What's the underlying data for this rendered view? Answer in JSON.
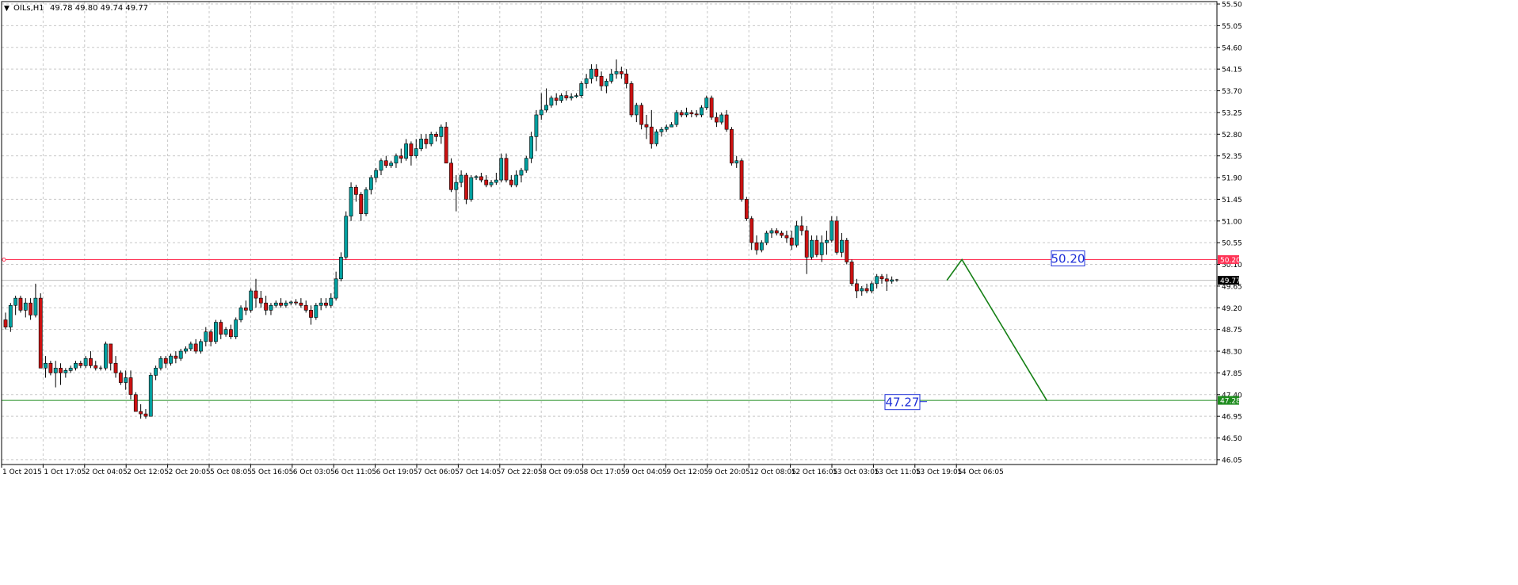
{
  "header": {
    "arrow": "▼",
    "symbol": "OILs,H1",
    "ohlc": "49.78 49.80 49.74 49.77"
  },
  "colors": {
    "bull_body": "#00A0A0",
    "bear_body": "#CC1111",
    "wick": "#000000",
    "grid": "#C8C8C8",
    "resistance_line": "#FF3355",
    "support_line": "#1E8C1E",
    "projection_line": "#168016",
    "current_price_bg": "#000000",
    "annotation_text": "#1E2FD8"
  },
  "chart_data": {
    "type": "candlestick",
    "symbol": "OILs",
    "timeframe": "H1",
    "ylim": [
      45.95,
      55.55
    ],
    "y_ticks": [
      "55.50",
      "55.05",
      "54.60",
      "54.15",
      "53.70",
      "53.25",
      "52.80",
      "52.35",
      "51.90",
      "51.45",
      "51.00",
      "50.55",
      "50.10",
      "49.65",
      "49.20",
      "48.75",
      "48.30",
      "47.85",
      "47.40",
      "46.95",
      "46.50",
      "46.05"
    ],
    "x_tick_labels": [
      "1 Oct 2015",
      "1 Oct 17:05",
      "2 Oct 04:05",
      "2 Oct 12:05",
      "2 Oct 20:05",
      "5 Oct 08:05",
      "5 Oct 16:05",
      "6 Oct 03:05",
      "6 Oct 11:05",
      "6 Oct 19:05",
      "7 Oct 06:05",
      "7 Oct 14:05",
      "7 Oct 22:05",
      "8 Oct 09:05",
      "8 Oct 17:05",
      "9 Oct 04:05",
      "9 Oct 12:05",
      "9 Oct 20:05",
      "12 Oct 08:05",
      "12 Oct 16:05",
      "13 Oct 03:05",
      "13 Oct 11:05",
      "13 Oct 19:05",
      "14 Oct 06:05"
    ],
    "bars": [
      [
        48.95,
        49.1,
        48.75,
        48.8
      ],
      [
        48.8,
        49.3,
        48.7,
        49.25
      ],
      [
        49.25,
        49.45,
        49.05,
        49.4
      ],
      [
        49.4,
        49.45,
        49.1,
        49.15
      ],
      [
        49.15,
        49.4,
        49.0,
        49.3
      ],
      [
        49.3,
        49.4,
        48.95,
        49.05
      ],
      [
        49.05,
        49.7,
        49.0,
        49.4
      ],
      [
        49.4,
        49.5,
        48.1,
        47.95
      ],
      [
        47.95,
        48.2,
        47.75,
        48.05
      ],
      [
        48.05,
        48.1,
        47.8,
        47.85
      ],
      [
        47.85,
        48.1,
        47.55,
        47.95
      ],
      [
        47.95,
        48.05,
        47.6,
        47.85
      ],
      [
        47.85,
        47.95,
        47.75,
        47.9
      ],
      [
        47.9,
        48.0,
        47.85,
        47.95
      ],
      [
        47.95,
        48.1,
        47.9,
        48.05
      ],
      [
        48.05,
        48.1,
        47.95,
        48.0
      ],
      [
        48.0,
        48.2,
        47.95,
        48.15
      ],
      [
        48.15,
        48.3,
        47.95,
        48.0
      ],
      [
        48.0,
        48.1,
        47.9,
        47.95
      ],
      [
        47.95,
        48.0,
        47.9,
        47.95
      ],
      [
        47.95,
        48.5,
        47.9,
        48.45
      ],
      [
        48.45,
        48.45,
        47.9,
        48.05
      ],
      [
        48.05,
        48.2,
        47.75,
        47.85
      ],
      [
        47.85,
        47.9,
        47.6,
        47.65
      ],
      [
        47.65,
        47.9,
        47.5,
        47.75
      ],
      [
        47.75,
        47.9,
        47.3,
        47.4
      ],
      [
        47.4,
        47.45,
        47.1,
        47.05
      ],
      [
        47.05,
        47.2,
        46.9,
        47.0
      ],
      [
        47.0,
        47.1,
        46.9,
        46.95
      ],
      [
        46.95,
        47.85,
        46.95,
        47.8
      ],
      [
        47.8,
        48.0,
        47.7,
        47.95
      ],
      [
        47.95,
        48.2,
        47.9,
        48.15
      ],
      [
        48.15,
        48.2,
        47.95,
        48.05
      ],
      [
        48.05,
        48.25,
        48.0,
        48.2
      ],
      [
        48.2,
        48.3,
        48.05,
        48.15
      ],
      [
        48.15,
        48.35,
        48.1,
        48.3
      ],
      [
        48.3,
        48.4,
        48.25,
        48.35
      ],
      [
        48.35,
        48.5,
        48.3,
        48.45
      ],
      [
        48.45,
        48.55,
        48.25,
        48.3
      ],
      [
        48.3,
        48.55,
        48.25,
        48.5
      ],
      [
        48.5,
        48.8,
        48.4,
        48.7
      ],
      [
        48.7,
        48.75,
        48.4,
        48.5
      ],
      [
        48.5,
        48.95,
        48.45,
        48.9
      ],
      [
        48.9,
        48.95,
        48.55,
        48.65
      ],
      [
        48.65,
        48.8,
        48.6,
        48.75
      ],
      [
        48.75,
        48.85,
        48.55,
        48.6
      ],
      [
        48.6,
        49.0,
        48.55,
        48.95
      ],
      [
        48.95,
        49.25,
        48.9,
        49.2
      ],
      [
        49.2,
        49.35,
        49.05,
        49.15
      ],
      [
        49.15,
        49.6,
        49.1,
        49.55
      ],
      [
        49.55,
        49.8,
        49.2,
        49.4
      ],
      [
        49.4,
        49.55,
        49.2,
        49.3
      ],
      [
        49.3,
        49.45,
        49.05,
        49.15
      ],
      [
        49.15,
        49.3,
        49.05,
        49.25
      ],
      [
        49.25,
        49.35,
        49.2,
        49.3
      ],
      [
        49.3,
        49.4,
        49.2,
        49.25
      ],
      [
        49.25,
        49.35,
        49.2,
        49.3
      ],
      [
        49.3,
        49.35,
        49.25,
        49.32
      ],
      [
        49.32,
        49.38,
        49.25,
        49.3
      ],
      [
        49.3,
        49.4,
        49.2,
        49.25
      ],
      [
        49.25,
        49.35,
        49.1,
        49.15
      ],
      [
        49.15,
        49.25,
        48.85,
        49.0
      ],
      [
        49.0,
        49.3,
        48.95,
        49.25
      ],
      [
        49.25,
        49.4,
        49.15,
        49.3
      ],
      [
        49.3,
        49.4,
        49.2,
        49.25
      ],
      [
        49.25,
        49.5,
        49.2,
        49.4
      ],
      [
        49.4,
        49.95,
        49.35,
        49.8
      ],
      [
        49.8,
        50.35,
        49.75,
        50.25
      ],
      [
        50.25,
        51.2,
        50.2,
        51.1
      ],
      [
        51.1,
        51.8,
        51.0,
        51.7
      ],
      [
        51.7,
        51.75,
        51.4,
        51.55
      ],
      [
        51.55,
        51.6,
        51.0,
        51.15
      ],
      [
        51.15,
        51.7,
        51.1,
        51.65
      ],
      [
        51.65,
        51.95,
        51.55,
        51.9
      ],
      [
        51.9,
        52.1,
        51.8,
        52.05
      ],
      [
        52.05,
        52.3,
        51.95,
        52.25
      ],
      [
        52.25,
        52.35,
        52.1,
        52.15
      ],
      [
        52.15,
        52.25,
        52.1,
        52.2
      ],
      [
        52.2,
        52.4,
        52.1,
        52.35
      ],
      [
        52.35,
        52.5,
        52.2,
        52.3
      ],
      [
        52.3,
        52.7,
        52.25,
        52.6
      ],
      [
        52.6,
        52.65,
        52.15,
        52.35
      ],
      [
        52.35,
        52.7,
        52.3,
        52.5
      ],
      [
        52.5,
        52.8,
        52.45,
        52.7
      ],
      [
        52.7,
        52.8,
        52.5,
        52.6
      ],
      [
        52.6,
        52.85,
        52.55,
        52.8
      ],
      [
        52.8,
        52.85,
        52.65,
        52.75
      ],
      [
        52.75,
        53.0,
        52.6,
        52.95
      ],
      [
        52.95,
        53.05,
        52.2,
        52.2
      ],
      [
        52.2,
        52.3,
        51.6,
        51.65
      ],
      [
        51.65,
        51.95,
        51.2,
        51.8
      ],
      [
        51.8,
        52.05,
        51.7,
        51.95
      ],
      [
        51.95,
        52.0,
        51.35,
        51.45
      ],
      [
        51.45,
        51.95,
        51.4,
        51.9
      ],
      [
        51.9,
        51.95,
        51.85,
        51.92
      ],
      [
        51.92,
        52.0,
        51.8,
        51.85
      ],
      [
        51.85,
        51.95,
        51.7,
        51.75
      ],
      [
        51.75,
        51.85,
        51.7,
        51.8
      ],
      [
        51.8,
        52.0,
        51.75,
        51.85
      ],
      [
        51.85,
        52.4,
        51.8,
        52.3
      ],
      [
        52.3,
        52.4,
        51.8,
        51.85
      ],
      [
        51.85,
        51.95,
        51.7,
        51.75
      ],
      [
        51.75,
        52.05,
        51.7,
        51.95
      ],
      [
        51.95,
        52.1,
        51.8,
        52.05
      ],
      [
        52.05,
        52.35,
        52.0,
        52.3
      ],
      [
        52.3,
        52.85,
        52.2,
        52.75
      ],
      [
        52.75,
        53.3,
        52.45,
        53.2
      ],
      [
        53.2,
        53.65,
        53.1,
        53.3
      ],
      [
        53.3,
        53.75,
        53.25,
        53.4
      ],
      [
        53.4,
        53.6,
        53.35,
        53.55
      ],
      [
        53.55,
        53.65,
        53.4,
        53.5
      ],
      [
        53.5,
        53.65,
        53.45,
        53.6
      ],
      [
        53.6,
        53.7,
        53.5,
        53.55
      ],
      [
        53.55,
        53.65,
        53.5,
        53.58
      ],
      [
        53.58,
        53.65,
        53.55,
        53.6
      ],
      [
        53.6,
        53.9,
        53.55,
        53.85
      ],
      [
        53.85,
        54.05,
        53.75,
        53.95
      ],
      [
        53.95,
        54.25,
        53.85,
        54.15
      ],
      [
        54.15,
        54.25,
        53.9,
        54.0
      ],
      [
        54.0,
        54.1,
        53.7,
        53.8
      ],
      [
        53.8,
        53.95,
        53.65,
        53.9
      ],
      [
        53.9,
        54.15,
        53.85,
        54.05
      ],
      [
        54.05,
        54.35,
        53.95,
        54.1
      ],
      [
        54.1,
        54.2,
        53.95,
        54.05
      ],
      [
        54.05,
        54.15,
        53.75,
        53.85
      ],
      [
        53.85,
        53.9,
        53.15,
        53.2
      ],
      [
        53.2,
        53.45,
        53.05,
        53.4
      ],
      [
        53.4,
        53.45,
        52.9,
        53.0
      ],
      [
        53.0,
        53.2,
        52.7,
        52.95
      ],
      [
        52.95,
        53.3,
        52.5,
        52.6
      ],
      [
        52.6,
        52.9,
        52.55,
        52.85
      ],
      [
        52.85,
        52.95,
        52.75,
        52.9
      ],
      [
        52.9,
        53.0,
        52.85,
        52.95
      ],
      [
        52.95,
        53.05,
        52.95,
        53.0
      ],
      [
        53.0,
        53.3,
        52.95,
        53.25
      ],
      [
        53.25,
        53.3,
        53.15,
        53.2
      ],
      [
        53.2,
        53.35,
        53.15,
        53.25
      ],
      [
        53.25,
        53.3,
        53.15,
        53.22
      ],
      [
        53.22,
        53.3,
        53.15,
        53.2
      ],
      [
        53.2,
        53.4,
        53.15,
        53.35
      ],
      [
        53.35,
        53.6,
        53.3,
        53.55
      ],
      [
        53.55,
        53.6,
        53.1,
        53.15
      ],
      [
        53.15,
        53.25,
        52.95,
        53.05
      ],
      [
        53.05,
        53.25,
        53.0,
        53.2
      ],
      [
        53.2,
        53.3,
        52.85,
        52.9
      ],
      [
        52.9,
        52.95,
        52.15,
        52.2
      ],
      [
        52.2,
        52.35,
        52.1,
        52.25
      ],
      [
        52.25,
        52.3,
        51.4,
        51.45
      ],
      [
        51.45,
        51.5,
        51.0,
        51.05
      ],
      [
        51.05,
        51.1,
        50.4,
        50.55
      ],
      [
        50.55,
        50.7,
        50.3,
        50.4
      ],
      [
        50.4,
        50.6,
        50.35,
        50.55
      ],
      [
        50.55,
        50.8,
        50.5,
        50.75
      ],
      [
        50.75,
        50.85,
        50.65,
        50.8
      ],
      [
        50.8,
        50.85,
        50.7,
        50.75
      ],
      [
        50.75,
        50.8,
        50.65,
        50.7
      ],
      [
        50.7,
        50.8,
        50.55,
        50.65
      ],
      [
        50.65,
        50.8,
        50.4,
        50.5
      ],
      [
        50.5,
        51.0,
        50.45,
        50.9
      ],
      [
        50.9,
        51.1,
        50.7,
        50.8
      ],
      [
        50.8,
        50.9,
        49.9,
        50.25
      ],
      [
        50.25,
        50.7,
        50.2,
        50.6
      ],
      [
        50.6,
        50.7,
        50.25,
        50.3
      ],
      [
        50.3,
        50.7,
        50.15,
        50.55
      ],
      [
        50.55,
        50.8,
        50.3,
        50.6
      ],
      [
        50.6,
        51.1,
        50.55,
        51.0
      ],
      [
        51.0,
        51.1,
        50.3,
        50.35
      ],
      [
        50.35,
        50.75,
        50.25,
        50.6
      ],
      [
        50.6,
        50.65,
        50.1,
        50.15
      ],
      [
        50.15,
        50.2,
        49.65,
        49.7
      ],
      [
        49.7,
        49.8,
        49.4,
        49.55
      ],
      [
        49.55,
        49.65,
        49.45,
        49.6
      ],
      [
        49.6,
        49.7,
        49.5,
        49.55
      ],
      [
        49.55,
        49.75,
        49.5,
        49.7
      ],
      [
        49.7,
        49.9,
        49.6,
        49.85
      ],
      [
        49.85,
        49.9,
        49.7,
        49.8
      ],
      [
        49.8,
        49.9,
        49.55,
        49.75
      ],
      [
        49.75,
        49.85,
        49.7,
        49.78
      ],
      [
        49.78,
        49.8,
        49.74,
        49.77
      ]
    ],
    "horizontal_lines": [
      {
        "label": "50.20",
        "value": 50.2,
        "color": "#FF3355"
      },
      {
        "label": "47.28",
        "value": 47.28,
        "color": "#1E8C1E"
      }
    ],
    "current_price": {
      "label": "49.77",
      "value": 49.77
    },
    "annotations": [
      {
        "text": "50.20",
        "value": 50.2
      },
      {
        "text": "47.27",
        "value": 47.27
      }
    ],
    "projection": [
      {
        "bar_index": 188,
        "value": 49.77
      },
      {
        "bar_index": 191,
        "value": 50.2
      },
      {
        "bar_index": 208,
        "value": 47.27
      }
    ]
  }
}
